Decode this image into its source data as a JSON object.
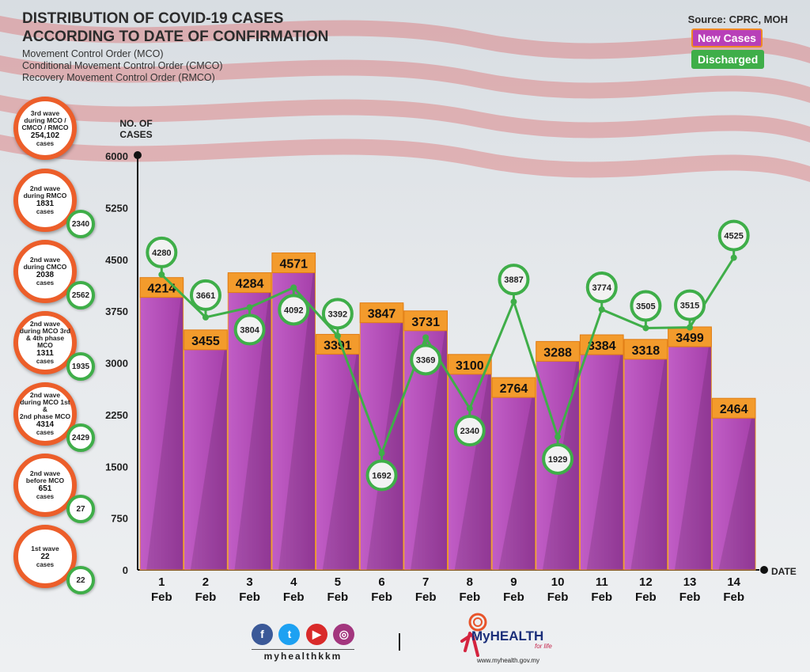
{
  "title_line1": "DISTRIBUTION OF COVID-19 CASES",
  "title_line2": "ACCORDING TO DATE OF CONFIRMATION",
  "subtitle_lines": [
    "Movement Control Order (MCO)",
    "Conditional Movement Control Order (CMCO)",
    "Recovery Movement Control Order (RMCO)"
  ],
  "source": "Source: CPRC, MOH",
  "legend": {
    "new_cases": "New Cases",
    "discharged": "Discharged"
  },
  "waves": [
    {
      "line1": "3rd wave",
      "line2": "during MCO /",
      "line3": "CMCO / RMCO",
      "cases": "254,102",
      "suffix": "cases",
      "discharged": ""
    },
    {
      "line1": "2nd wave",
      "line2": "during RMCO",
      "line3": "",
      "cases": "1831",
      "suffix": "cases",
      "discharged": "2340"
    },
    {
      "line1": "2nd wave",
      "line2": "during CMCO",
      "line3": "",
      "cases": "2038",
      "suffix": "cases",
      "discharged": "2562"
    },
    {
      "line1": "2nd wave",
      "line2": "during MCO 3rd",
      "line3": "& 4th phase MCO",
      "cases": "1311",
      "suffix": "cases",
      "discharged": "1935"
    },
    {
      "line1": "2nd wave",
      "line2": "during MCO 1st &",
      "line3": "2nd phase MCO",
      "cases": "4314",
      "suffix": "cases",
      "discharged": "2429"
    },
    {
      "line1": "2nd wave",
      "line2": "before MCO",
      "line3": "",
      "cases": "651",
      "suffix": "cases",
      "discharged": "27"
    },
    {
      "line1": "1st wave",
      "line2": "",
      "line3": "",
      "cases": "22",
      "suffix": "cases",
      "discharged": "22"
    }
  ],
  "colors": {
    "bar": "#a53fa9",
    "bar_light": "#c15ec6",
    "label_bg": "#f39b2c",
    "discharged": "#3fae49",
    "bubble_border": "#ec5e2a"
  },
  "chart_data": {
    "type": "bar",
    "title": "DISTRIBUTION OF COVID-19 CASES ACCORDING TO DATE OF CONFIRMATION",
    "ylabel": "NO. OF CASES",
    "xlabel": "DATE",
    "ylim": [
      0,
      6000
    ],
    "yticks": [
      0,
      750,
      1500,
      2250,
      3000,
      3750,
      4500,
      5250,
      6000
    ],
    "categories": [
      "1 Feb",
      "2 Feb",
      "3 Feb",
      "4 Feb",
      "5 Feb",
      "6 Feb",
      "7 Feb",
      "8 Feb",
      "9 Feb",
      "10 Feb",
      "11 Feb",
      "12 Feb",
      "13 Feb",
      "14 Feb"
    ],
    "series": [
      {
        "name": "New Cases",
        "type": "bar",
        "values": [
          4214,
          3455,
          4284,
          4571,
          3391,
          3847,
          3731,
          3100,
          2764,
          3288,
          3384,
          3318,
          3499,
          2464
        ]
      },
      {
        "name": "Discharged",
        "type": "line",
        "values": [
          4280,
          3661,
          3804,
          4092,
          3392,
          1692,
          3369,
          2340,
          3887,
          1929,
          3774,
          3505,
          3515,
          4525
        ]
      }
    ]
  },
  "footer": {
    "handle": "myhealthkkm",
    "brand": "MyHEALTH",
    "tagline": "for life",
    "url": "www.myhealth.gov.my",
    "social": [
      "f",
      "t",
      "▶",
      "◎"
    ]
  }
}
